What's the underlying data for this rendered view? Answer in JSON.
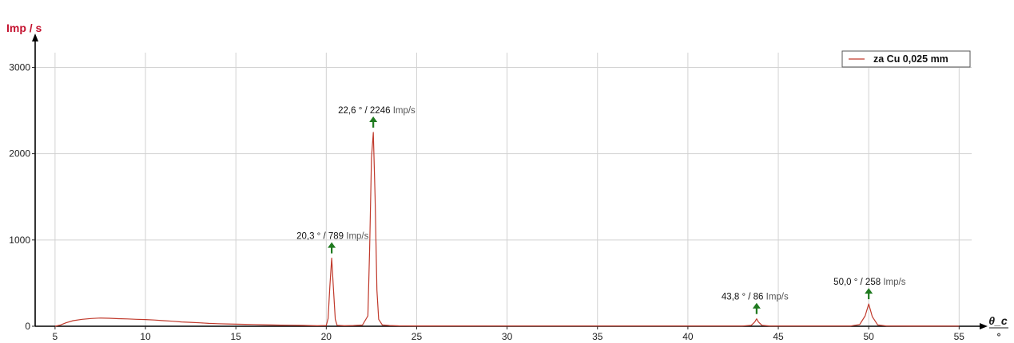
{
  "chart_data": {
    "type": "line",
    "ylabel": "Imp / s",
    "xlabel": "θ_c",
    "xunit": "°",
    "xlim": [
      3.9,
      56.4
    ],
    "ylim": [
      0,
      3300
    ],
    "xticks": [
      5,
      10,
      15,
      20,
      25,
      30,
      35,
      40,
      45,
      50,
      55
    ],
    "yticks": [
      0,
      1000,
      2000,
      3000
    ],
    "grid": true,
    "legend_position": "top-right",
    "series": [
      {
        "name": "za Cu 0,025 mm",
        "color": "#c0392b",
        "x": [
          5.0,
          5.3,
          5.6,
          6.0,
          6.5,
          7.0,
          7.5,
          8.0,
          8.5,
          9.0,
          9.5,
          10.0,
          10.5,
          11.0,
          11.5,
          12.0,
          12.5,
          13.0,
          13.5,
          14.0,
          14.5,
          15.0,
          15.5,
          16.0,
          16.5,
          17.0,
          17.5,
          18.0,
          18.5,
          19.0,
          19.5,
          20.0,
          20.1,
          20.2,
          20.3,
          20.4,
          20.5,
          20.6,
          21.0,
          21.5,
          22.0,
          22.3,
          22.4,
          22.5,
          22.6,
          22.7,
          22.8,
          22.9,
          23.1,
          23.5,
          24.0,
          25.0,
          30.0,
          35.0,
          40.0,
          43.0,
          43.5,
          43.7,
          43.8,
          43.9,
          44.1,
          44.5,
          45.0,
          49.0,
          49.5,
          49.8,
          50.0,
          50.2,
          50.5,
          51.0,
          55.0
        ],
        "y": [
          0,
          15,
          40,
          65,
          80,
          90,
          95,
          92,
          88,
          85,
          80,
          78,
          72,
          65,
          58,
          50,
          45,
          40,
          33,
          30,
          27,
          24,
          22,
          20,
          18,
          15,
          13,
          12,
          10,
          8,
          6,
          8,
          90,
          460,
          789,
          420,
          80,
          10,
          6,
          8,
          14,
          120,
          900,
          1950,
          2246,
          1500,
          420,
          80,
          15,
          8,
          5,
          4,
          3,
          3,
          3,
          3,
          10,
          50,
          86,
          50,
          10,
          4,
          3,
          3,
          20,
          120,
          258,
          110,
          15,
          3,
          2
        ]
      }
    ],
    "annotations": [
      {
        "x": 20.3,
        "y": 789,
        "text_value": "20,3 ° / 789",
        "text_unit": "Imp/s"
      },
      {
        "x": 22.6,
        "y": 2246,
        "text_value": "22,6 ° / 2246",
        "text_unit": "Imp/s"
      },
      {
        "x": 43.8,
        "y": 86,
        "text_value": "43,8 ° / 86",
        "text_unit": "Imp/s"
      },
      {
        "x": 50.0,
        "y": 258,
        "text_value": "50,0 ° / 258",
        "text_unit": "Imp/s"
      }
    ]
  }
}
